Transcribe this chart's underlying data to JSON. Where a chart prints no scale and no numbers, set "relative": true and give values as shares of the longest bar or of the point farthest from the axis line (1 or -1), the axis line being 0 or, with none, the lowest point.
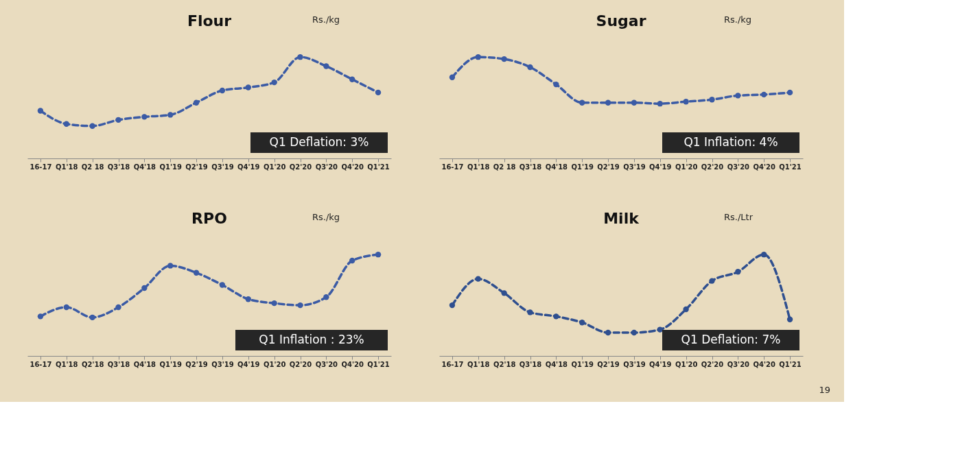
{
  "chart_data": [
    {
      "type": "line",
      "title": "Flour",
      "relative": true,
      "marker": "circle",
      "line_style": "dashed",
      "grid": false,
      "categories": [
        "16-17",
        "Q1'18",
        "Q2 18",
        "Q3'18",
        "Q4'18",
        "Q1'19",
        "Q2'19",
        "Q3'19",
        "Q4'19",
        "Q1'20",
        "Q2'20",
        "Q3'20",
        "Q4'20",
        "Q1'21"
      ],
      "series": [
        {
          "color": "#3b5ba5",
          "values": [
            0.47,
            0.34,
            0.32,
            0.38,
            0.41,
            0.43,
            0.55,
            0.67,
            0.7,
            0.75,
            1,
            0.91,
            0.78,
            0.65
          ]
        }
      ],
      "annotations": [
        "Rs./kg",
        "Q1 Deflation: 3%"
      ]
    },
    {
      "type": "line",
      "title": "Sugar",
      "relative": true,
      "marker": "circle",
      "line_style": "dashed",
      "grid": false,
      "categories": [
        "16-17",
        "Q1'18",
        "Q2 18",
        "Q3'18",
        "Q4'18",
        "Q1'19",
        "Q2'19",
        "Q3'19",
        "Q4'19",
        "Q1'20",
        "Q2'20",
        "Q3'20",
        "Q4'20",
        "Q1'21"
      ],
      "series": [
        {
          "color": "#3b5ba5",
          "values": [
            0.8,
            1,
            0.98,
            0.9,
            0.73,
            0.55,
            0.55,
            0.55,
            0.54,
            0.56,
            0.58,
            0.62,
            0.63,
            0.65
          ]
        }
      ],
      "annotations": [
        "Rs./kg",
        "Q1 Inflation: 4%"
      ]
    },
    {
      "type": "line",
      "title": "RPO",
      "relative": true,
      "marker": "circle",
      "line_style": "dashed",
      "grid": false,
      "categories": [
        "16-17",
        "Q1'18",
        "Q2'18",
        "Q3'18",
        "Q4'18",
        "Q1'19",
        "Q2'19",
        "Q3'19",
        "Q4'19",
        "Q1'20",
        "Q2'20",
        "Q3'20",
        "Q4'20",
        "Q1'21"
      ],
      "series": [
        {
          "color": "#3b5ba5",
          "values": [
            0.39,
            0.48,
            0.38,
            0.48,
            0.67,
            0.89,
            0.82,
            0.7,
            0.56,
            0.52,
            0.5,
            0.58,
            0.94,
            1
          ]
        }
      ],
      "annotations": [
        "Rs./kg",
        "Q1 Inflation : 23%"
      ]
    },
    {
      "type": "line",
      "title": "Milk",
      "relative": true,
      "marker": "circle",
      "line_style": "dashed",
      "grid": false,
      "categories": [
        "16-17",
        "Q1'18",
        "Q2'18",
        "Q3'18",
        "Q4'18",
        "Q1'19",
        "Q2'19",
        "Q3'19",
        "Q4'19",
        "Q1'20",
        "Q2'20",
        "Q3'20",
        "Q4'20",
        "Q1'21"
      ],
      "series": [
        {
          "color": "#2f4f8f",
          "values": [
            0.5,
            0.76,
            0.62,
            0.43,
            0.39,
            0.33,
            0.23,
            0.23,
            0.26,
            0.46,
            0.74,
            0.83,
            1,
            0.36
          ]
        }
      ],
      "annotations": [
        "Rs./Ltr",
        "Q1 Deflation: 7%",
        "19"
      ]
    }
  ]
}
